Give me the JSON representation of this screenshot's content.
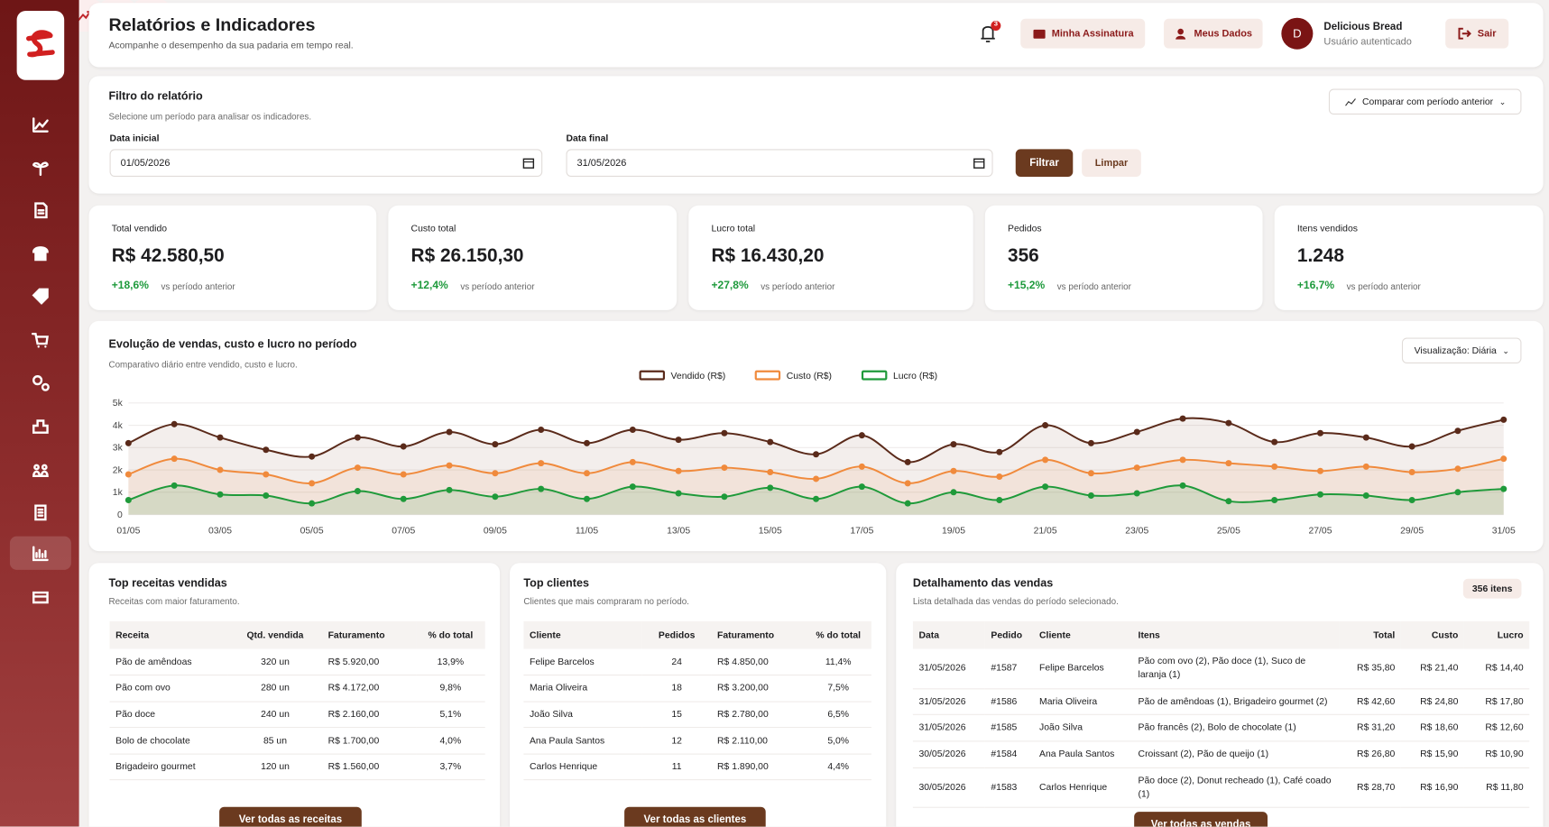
{
  "header": {
    "title": "Relatórios e Indicadores",
    "subtitle": "Acompanhe o desempenho da sua padaria em tempo real.",
    "notifications": "3",
    "subscription": "Minha Assinatura",
    "my_data": "Meus Dados",
    "user": {
      "avatar": "D",
      "name": "Delicious Bread",
      "status": "Usuário autenticado"
    },
    "logout": "Sair"
  },
  "filter": {
    "title": "Filtro do relatório",
    "subtitle": "Selecione um período para analisar os indicadores.",
    "compare": "Comparar com período anterior",
    "start_label": "Data inicial",
    "start": "01/05/2026",
    "end_label": "Data final",
    "end": "31/05/2026",
    "apply": "Filtrar",
    "clear": "Limpar"
  },
  "kpis": [
    {
      "label": "Total vendido",
      "value": "R$ 42.580,50",
      "change": "+18,6%",
      "note": "vs período anterior"
    },
    {
      "label": "Custo total",
      "value": "R$ 26.150,30",
      "change": "+12,4%",
      "note": "vs período anterior"
    },
    {
      "label": "Lucro total",
      "value": "R$ 16.430,20",
      "change": "+27,8%",
      "note": "vs período anterior"
    },
    {
      "label": "Pedidos",
      "value": "356",
      "change": "+15,2%",
      "note": "vs período anterior"
    },
    {
      "label": "Itens vendidos",
      "value": "1.248",
      "change": "+16,7%",
      "note": "vs período anterior"
    }
  ],
  "chart_view": "Visualização: Diária",
  "chart_data": {
    "type": "line",
    "title": "Evolução de vendas, custo e lucro no período",
    "subtitle": "Comparativo diário entre vendido, custo e lucro.",
    "categories": [
      "01/05",
      null,
      "03/05",
      null,
      "05/05",
      null,
      "07/05",
      null,
      "09/05",
      null,
      "11/05",
      null,
      "13/05",
      null,
      "15/05",
      null,
      "17/05",
      null,
      "19/05",
      null,
      "21/05",
      null,
      "23/05",
      null,
      "25/05",
      null,
      "27/05",
      null,
      "29/05",
      null,
      "31/05"
    ],
    "series": [
      {
        "name": "Vendido (R$)",
        "color": "#5a2a1a",
        "values": [
          3200,
          4050,
          3450,
          2900,
          2600,
          3450,
          3050,
          3700,
          3150,
          3800,
          3200,
          3800,
          3350,
          3650,
          3250,
          2700,
          3550,
          2350,
          3150,
          2800,
          4000,
          3200,
          3700,
          4300,
          4100,
          3250,
          3650,
          3450,
          3050,
          3750,
          4250
        ]
      },
      {
        "name": "Custo (R$)",
        "color": "#f08a3c",
        "values": [
          1800,
          2500,
          2000,
          1800,
          1400,
          2100,
          1800,
          2200,
          1850,
          2300,
          1850,
          2350,
          1950,
          2100,
          1900,
          1600,
          2150,
          1400,
          1950,
          1700,
          2450,
          1850,
          2100,
          2450,
          2300,
          2150,
          1950,
          2150,
          1900,
          2050,
          2500
        ]
      },
      {
        "name": "Lucro (R$)",
        "color": "#1f9a3a",
        "values": [
          650,
          1300,
          900,
          850,
          500,
          1050,
          700,
          1100,
          800,
          1150,
          700,
          1250,
          950,
          800,
          1200,
          700,
          1250,
          500,
          1000,
          650,
          1250,
          850,
          950,
          1300,
          600,
          650,
          900,
          850,
          650,
          1000,
          1150
        ]
      }
    ],
    "ylim": [
      0,
      5000
    ],
    "yticks": [
      0,
      {
        "value": 1000,
        "label": "1k"
      },
      {
        "value": 2000,
        "label": "2k"
      },
      {
        "value": 3000,
        "label": "3k"
      },
      {
        "value": 4000,
        "label": "4k"
      },
      {
        "value": 5000,
        "label": "5k"
      }
    ],
    "grid": true
  },
  "top_recipes": {
    "title": "Top receitas vendidas",
    "subtitle": "Receitas com maior faturamento.",
    "columns": [
      "Receita",
      "Qtd. vendida",
      "Faturamento",
      "% do total"
    ],
    "rows": [
      [
        "Pão de amêndoas",
        "320 un",
        "R$ 5.920,00",
        "13,9%"
      ],
      [
        "Pão com ovo",
        "280 un",
        "R$ 4.172,00",
        "9,8%"
      ],
      [
        "Pão doce",
        "240 un",
        "R$ 2.160,00",
        "5,1%"
      ],
      [
        "Bolo de chocolate",
        "85 un",
        "R$ 1.700,00",
        "4,0%"
      ],
      [
        "Brigadeiro gourmet",
        "120 un",
        "R$ 1.560,00",
        "3,7%"
      ]
    ],
    "button": "Ver todas as receitas"
  },
  "top_clients": {
    "title": "Top clientes",
    "subtitle": "Clientes que mais compraram no período.",
    "columns": [
      "Cliente",
      "Pedidos",
      "Faturamento",
      "% do total"
    ],
    "rows": [
      [
        "Felipe Barcelos",
        "24",
        "R$ 4.850,00",
        "11,4%"
      ],
      [
        "Maria Oliveira",
        "18",
        "R$ 3.200,00",
        "7,5%"
      ],
      [
        "João Silva",
        "15",
        "R$ 2.780,00",
        "6,5%"
      ],
      [
        "Ana Paula Santos",
        "12",
        "R$ 2.110,00",
        "5,0%"
      ],
      [
        "Carlos Henrique",
        "11",
        "R$ 1.890,00",
        "4,4%"
      ]
    ],
    "button": "Ver todas as clientes"
  },
  "sales": {
    "title": "Detalhamento das vendas",
    "subtitle": "Lista detalhada das vendas do período selecionado.",
    "count": "356 itens",
    "columns": [
      "Data",
      "Pedido",
      "Cliente",
      "Itens",
      "Total",
      "Custo",
      "Lucro"
    ],
    "rows": [
      [
        "31/05/2026",
        "#1587",
        "Felipe Barcelos",
        "Pão com ovo (2), Pão doce (1), Suco de laranja (1)",
        "R$ 35,80",
        "R$ 21,40",
        "R$ 14,40"
      ],
      [
        "31/05/2026",
        "#1586",
        "Maria Oliveira",
        "Pão de amêndoas (1), Brigadeiro gourmet (2)",
        "R$ 42,60",
        "R$ 24,80",
        "R$ 17,80"
      ],
      [
        "31/05/2026",
        "#1585",
        "João Silva",
        "Pão francês (2), Bolo de chocolate (1)",
        "R$ 31,20",
        "R$ 18,60",
        "R$ 12,60"
      ],
      [
        "30/05/2026",
        "#1584",
        "Ana Paula Santos",
        "Croissant (2), Pão de queijo (1)",
        "R$ 26,80",
        "R$ 15,90",
        "R$ 10,90"
      ],
      [
        "30/05/2026",
        "#1583",
        "Carlos Henrique",
        "Pão doce (2), Donut recheado (1), Café coado (1)",
        "R$ 28,70",
        "R$ 16,90",
        "R$ 11,80"
      ]
    ],
    "button": "Ver todas as vendas"
  }
}
